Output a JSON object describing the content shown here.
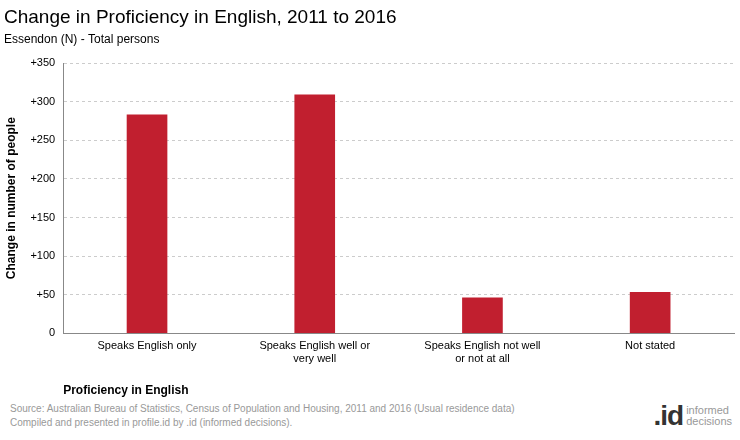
{
  "chart_data": {
    "type": "bar",
    "title": "Change in Proficiency in English, 2011 to 2016",
    "subtitle": "Essendon (N) - Total persons",
    "x_label": "Proficiency in English",
    "y_label": "Change in number of people",
    "categories": [
      "Speaks English only",
      "Speaks English well or very well",
      "Speaks English not well or not at all",
      "Not stated"
    ],
    "values": [
      283,
      309,
      46,
      53
    ],
    "color": "#c11f2f",
    "ylim": [
      0,
      350
    ],
    "yticks": [
      0,
      {
        "value": 50,
        "label": "+50"
      },
      {
        "value": 100,
        "label": "+100"
      },
      {
        "value": 150,
        "label": "+150"
      },
      {
        "value": 200,
        "label": "+200"
      },
      {
        "value": 250,
        "label": "+250"
      },
      {
        "value": 300,
        "label": "+300"
      },
      {
        "value": 350,
        "label": "+350"
      }
    ],
    "grid": true,
    "source": [
      "Source: Australian Bureau of Statistics, Census of Population and Housing, 2011 and 2016 (Usual residence data)",
      "Compiled and presented in profile.id by .id (informed decisions)."
    ],
    "logo": {
      "mark": ".id",
      "text": [
        "informed",
        "decisions"
      ]
    }
  }
}
